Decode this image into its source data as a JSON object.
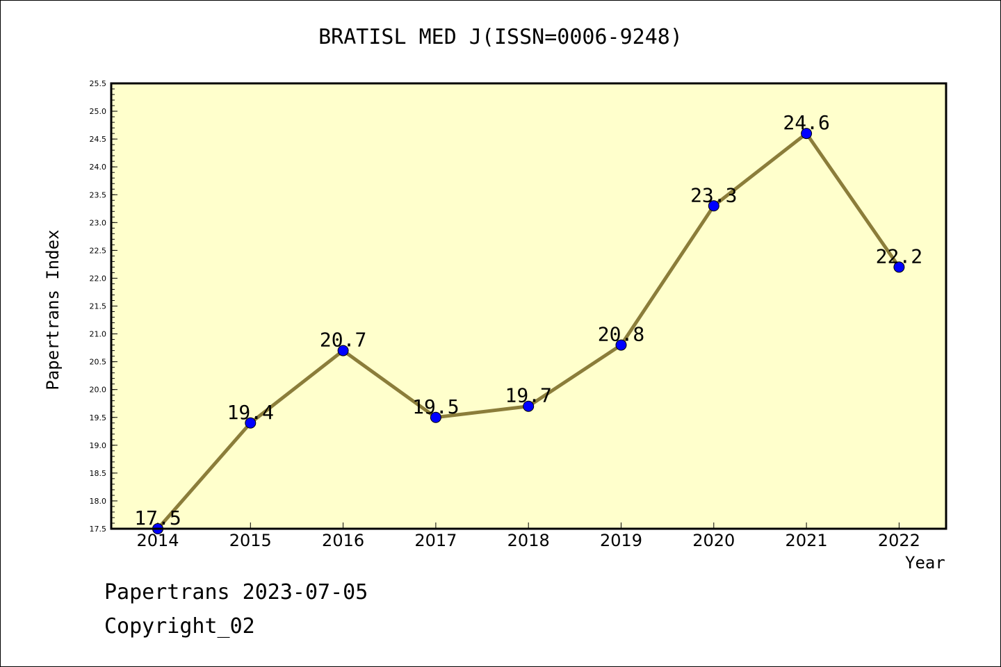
{
  "chart_data": {
    "type": "line",
    "title": "BRATISL MED J(ISSN=0006-9248)",
    "xlabel": "Year",
    "ylabel": "Papertrans Index",
    "categories": [
      "2014",
      "2015",
      "2016",
      "2017",
      "2018",
      "2019",
      "2020",
      "2021",
      "2022"
    ],
    "series": [
      {
        "values": [
          17.5,
          19.4,
          20.7,
          19.5,
          19.7,
          20.8,
          23.3,
          24.6,
          22.2
        ],
        "labels": [
          "17.5",
          "19.4",
          "20.7",
          "19.5",
          "19.7",
          "20.8",
          "23.3",
          "24.6",
          "22.2"
        ],
        "line_color": "#8b7d3a",
        "marker_color": "#0000ff"
      }
    ],
    "ylim": [
      17.5,
      25.5
    ],
    "yticks": [
      "17.5",
      "18.0",
      "18.5",
      "19.0",
      "19.5",
      "20.0",
      "20.5",
      "21.0",
      "21.5",
      "22.0",
      "22.5",
      "23.0",
      "23.5",
      "24.0",
      "24.5",
      "25.0",
      "25.5"
    ],
    "grid": false,
    "plot_background": "#ffffcc"
  },
  "footer": {
    "line1": "Papertrans 2023-07-05",
    "line2": "Copyright_02"
  }
}
